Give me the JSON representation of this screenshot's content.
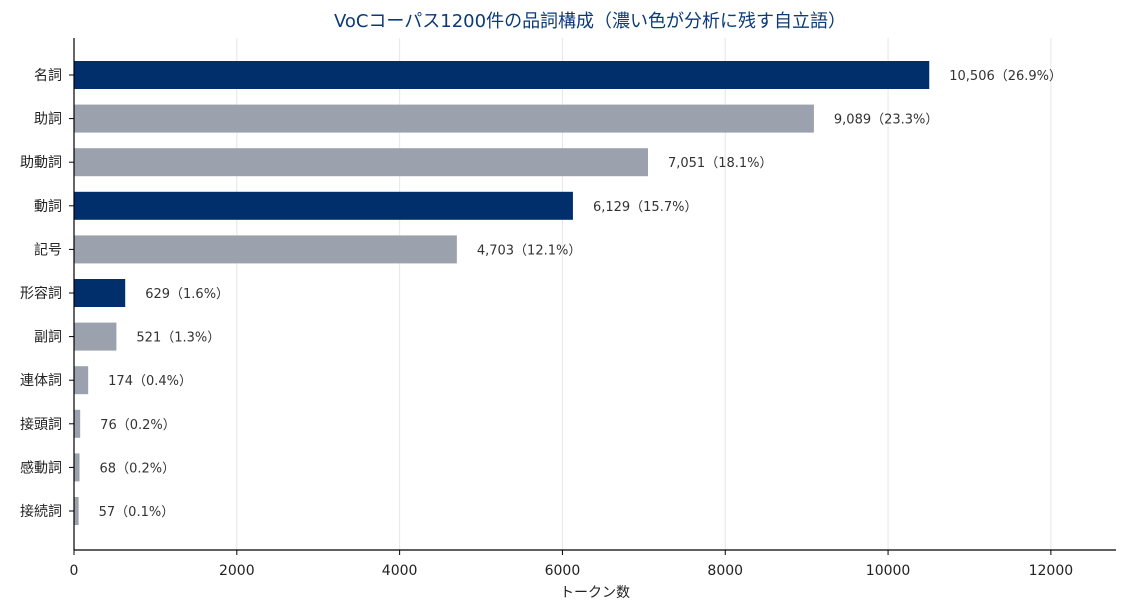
{
  "chart_data": {
    "type": "bar",
    "orientation": "horizontal",
    "title": "VoCコーパス1200件の品詞構成（濃い色が分析に残す自立語）",
    "xlabel": "トークン数",
    "ylabel": "",
    "xlim": [
      0,
      12800
    ],
    "xticks": [
      0,
      2000,
      4000,
      6000,
      8000,
      10000,
      12000
    ],
    "xtick_labels": [
      "0",
      "2000",
      "4000",
      "6000",
      "8000",
      "10000",
      "12000"
    ],
    "grid": "vertical",
    "categories": [
      "名詞",
      "助詞",
      "助動詞",
      "動詞",
      "記号",
      "形容詞",
      "副詞",
      "連体詞",
      "接頭詞",
      "感動詞",
      "接続詞"
    ],
    "values": [
      10506,
      9089,
      7051,
      6129,
      4703,
      629,
      521,
      174,
      76,
      68,
      57
    ],
    "highlight": [
      true,
      false,
      false,
      true,
      false,
      true,
      false,
      false,
      false,
      false,
      false
    ],
    "data_labels": [
      "10,506（26.9%）",
      "9,089（23.3%）",
      "7,051（18.1%）",
      "6,129（15.7%）",
      "4,703（12.1%）",
      "629（1.6%）",
      "521（1.3%）",
      "174（0.4%）",
      "76（0.2%）",
      "68（0.2%）",
      "57（0.1%）"
    ]
  },
  "colors": {
    "highlight_bar": "#002f6c",
    "muted_bar": "#9ba2ad",
    "title": "#0b3a78",
    "grid": "#e6e6e6",
    "axis": "#000000"
  }
}
